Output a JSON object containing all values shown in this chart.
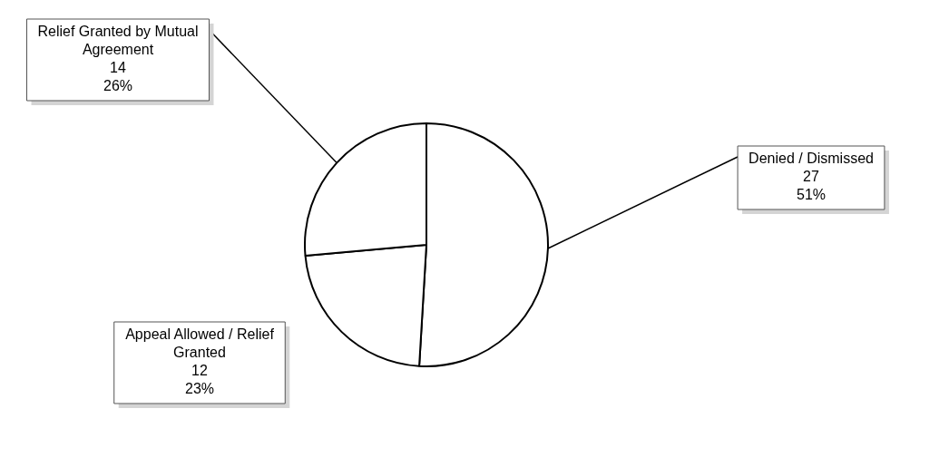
{
  "chart_data": {
    "type": "pie",
    "categories": [
      "Denied / Dismissed",
      "Appeal Allowed / Relief Granted",
      "Relief Granted by Mutual Agreement"
    ],
    "values": [
      27,
      12,
      14
    ],
    "value_labels": [
      "27\n51%",
      "12\n23%",
      "14\n26%"
    ],
    "colors": [
      "#ffffff",
      "#ffffff",
      "#ffffff"
    ],
    "legend": false
  }
}
